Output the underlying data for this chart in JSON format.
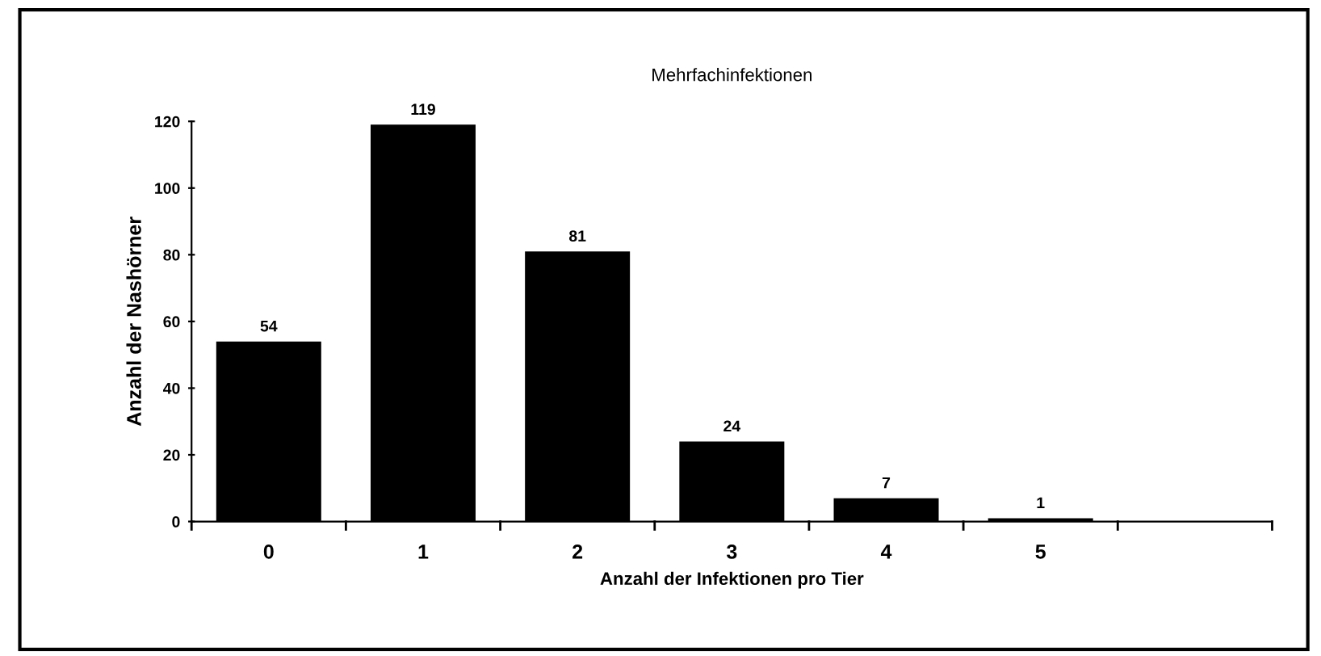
{
  "chart_data": {
    "type": "bar",
    "title": "Mehrfachinfektionen",
    "xlabel": "Anzahl der Infektionen pro Tier",
    "ylabel": "Anzahl der Nashörner",
    "categories": [
      "0",
      "1",
      "2",
      "3",
      "4",
      "5",
      null
    ],
    "values": [
      54,
      119,
      81,
      24,
      7,
      1,
      null
    ],
    "color": "#000000",
    "data_labels": true,
    "ylim": [
      0,
      120
    ],
    "yticks": [
      0,
      20,
      40,
      60,
      80,
      100,
      120
    ],
    "grid": false
  }
}
